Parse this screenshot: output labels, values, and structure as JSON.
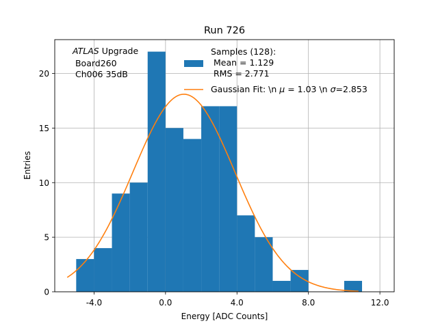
{
  "chart_data": {
    "type": "bar",
    "title": "Run 726",
    "xlabel": "Energy [ADC Counts]",
    "ylabel": "Entries",
    "xlim": [
      -6.2,
      12.8
    ],
    "ylim": [
      0,
      23.1
    ],
    "grid": true,
    "x_ticks": [
      -4.0,
      0.0,
      4.0,
      8.0,
      12.0
    ],
    "x_tick_labels": [
      "-4.0",
      "0.0",
      "4.0",
      "8.0",
      "12.0"
    ],
    "y_ticks": [
      0,
      5,
      10,
      15,
      20
    ],
    "y_tick_labels": [
      "0",
      "5",
      "10",
      "15",
      "20"
    ],
    "bin_edges": [
      -5,
      -4,
      -3,
      -2,
      -1,
      0,
      1,
      2,
      3,
      4,
      5,
      6,
      7,
      8,
      9,
      10,
      11
    ],
    "counts": [
      3,
      4,
      9,
      10,
      22,
      15,
      14,
      17,
      17,
      7,
      5,
      1,
      2,
      0,
      0,
      1
    ],
    "bar_color": "#1f77b4",
    "fit": {
      "mu": 1.03,
      "sigma": 2.853,
      "amplitude": 18.1,
      "x_range": [
        -5.5,
        10.8
      ],
      "color": "#ff7f0e"
    },
    "legend": {
      "placement": "top-right",
      "hist_entry": [
        "Samples (128):",
        " Mean = 1.129",
        " RMS = 2.771"
      ],
      "fit_entry_prefix": "Gaussian Fit: \\n ",
      "fit_entry_mu_symbol": "μ",
      "fit_entry_middle": " = 1.03 \\n ",
      "fit_entry_sigma_symbol": "σ",
      "fit_entry_suffix": "=2.853"
    },
    "annotation": {
      "italic": "ATLAS",
      "first_line_rest": " Upgrade",
      "lines": [
        " Board260",
        " Ch006 35dB"
      ]
    }
  }
}
